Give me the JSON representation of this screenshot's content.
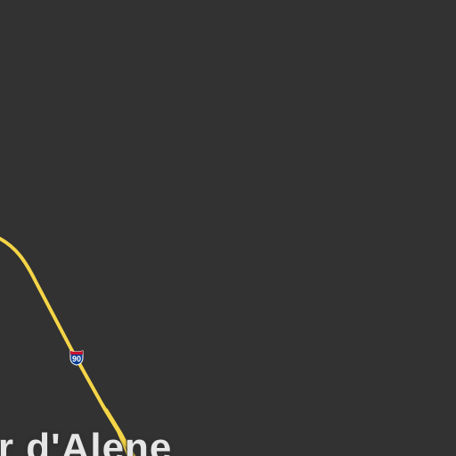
{
  "map": {
    "background_color": "#323232",
    "road_color": "#f5d547",
    "label_color": "#e6e6e6",
    "city_label": "ur d'Alene",
    "highway_shield": {
      "type": "interstate",
      "number": "90",
      "colors": {
        "top": "#c8102e",
        "body": "#0b3f91"
      }
    }
  }
}
